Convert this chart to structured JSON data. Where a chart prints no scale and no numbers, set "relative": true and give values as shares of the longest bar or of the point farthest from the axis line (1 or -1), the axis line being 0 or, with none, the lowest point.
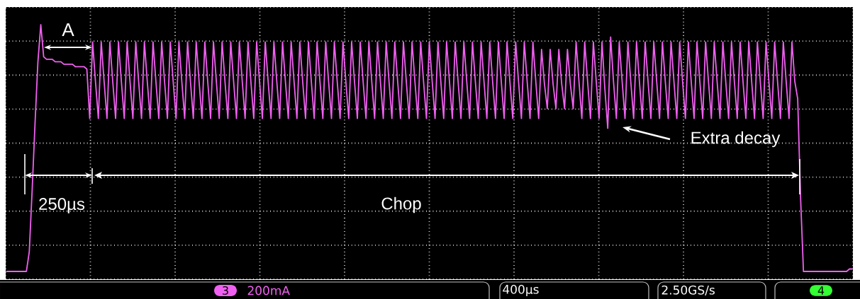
{
  "chart_data": {
    "type": "line",
    "relative": true,
    "grid": true,
    "color": "#f060f0",
    "annotations": [
      "A",
      "250µs",
      "Chop",
      "Extra decay",
      "3",
      "200mA",
      "400µs",
      "2.50GS/s",
      "4"
    ],
    "categories": [
      null,
      null,
      null,
      null,
      null,
      null,
      null,
      null,
      null,
      null,
      null,
      null,
      null,
      null,
      null,
      null,
      null,
      null,
      null,
      null,
      null,
      null,
      null,
      null,
      null,
      null,
      null,
      null,
      null,
      null,
      null,
      null,
      null,
      null,
      null,
      null,
      null,
      null,
      null,
      null,
      null,
      null,
      null,
      null,
      null,
      null,
      null,
      null,
      null,
      null,
      null,
      null,
      null,
      null,
      null,
      null,
      null,
      null,
      null,
      null,
      null,
      null,
      null,
      null,
      null,
      null,
      null,
      null,
      null,
      null,
      null,
      null,
      null,
      null,
      null,
      null,
      null,
      null,
      null,
      null,
      null,
      null,
      null,
      null,
      null,
      null,
      null,
      null,
      null,
      null,
      null,
      null,
      null,
      null,
      null,
      null,
      null,
      null,
      null,
      null,
      null,
      null,
      null,
      null,
      null,
      null,
      null,
      null,
      null,
      null,
      null,
      null,
      null,
      null,
      null,
      null,
      null,
      null,
      null,
      null,
      null,
      null,
      null,
      null,
      null,
      null,
      null,
      null,
      null,
      null,
      null,
      null,
      null,
      null,
      null,
      null,
      null,
      null,
      null,
      null,
      null,
      null,
      null,
      null,
      null,
      null,
      null,
      null,
      null,
      null,
      null,
      null,
      null,
      null,
      null,
      null,
      null,
      null,
      null,
      null,
      null,
      null,
      null,
      null,
      null,
      null,
      null,
      null,
      null,
      null,
      null,
      null,
      null,
      null,
      null,
      null,
      null,
      null,
      null,
      null,
      null,
      null,
      null,
      null,
      null,
      null,
      null,
      null,
      null,
      null,
      null,
      null,
      null,
      null,
      null,
      null,
      null,
      null,
      null,
      null,
      null,
      null,
      null,
      null,
      null,
      null,
      null,
      null,
      null,
      null,
      null,
      null,
      null,
      null,
      null,
      null,
      null,
      null,
      null,
      null,
      null,
      null,
      null,
      null,
      null,
      null,
      null,
      null,
      null,
      null,
      null,
      null,
      null,
      null,
      null,
      null,
      null,
      null,
      null,
      null,
      null,
      null,
      null,
      null,
      null,
      null,
      null,
      null,
      null,
      null,
      null,
      null,
      null,
      null,
      null,
      null,
      null,
      null,
      null,
      null,
      null,
      null,
      null,
      null,
      null,
      null,
      null,
      null,
      null,
      null,
      null,
      null,
      null,
      null,
      null,
      null,
      null,
      null,
      null,
      null,
      null,
      null,
      null,
      null,
      null,
      null,
      null,
      null,
      null,
      null,
      null,
      null,
      null,
      null,
      null
    ],
    "values": [
      0,
      0,
      0,
      0,
      0,
      0,
      0,
      0,
      0.08,
      0.33,
      0.6,
      0.85,
      1.0,
      0.87,
      0.86,
      0.86,
      0.86,
      0.85,
      0.85,
      0.85,
      0.84,
      0.84,
      0.84,
      0.84,
      0.83,
      0.83,
      0.83,
      0.83,
      0.82,
      0.62,
      0.93,
      0.77,
      0.62,
      0.93,
      0.77,
      0.62,
      0.93,
      0.77,
      0.62,
      0.93,
      0.77,
      0.62,
      0.93,
      0.77,
      0.62,
      0.93,
      0.77,
      0.62,
      0.93,
      0.77,
      0.62,
      0.93,
      0.77,
      0.62,
      0.93,
      0.77,
      0.62,
      0.93,
      0.77,
      0.62,
      0.93,
      0.77,
      0.62,
      0.93,
      0.77,
      0.62,
      0.93,
      0.77,
      0.62,
      0.93,
      0.77,
      0.62,
      0.93,
      0.77,
      0.62,
      0.93,
      0.77,
      0.62,
      0.93,
      0.77,
      0.62,
      0.93,
      0.77,
      0.62,
      0.93,
      0.77,
      0.62,
      0.93,
      0.77,
      0.62,
      0.93,
      0.77,
      0.62,
      0.93,
      0.77,
      0.62,
      0.93,
      0.77,
      0.62,
      0.93,
      0.77,
      0.62,
      0.93,
      0.77,
      0.62,
      0.93,
      0.77,
      0.62,
      0.93,
      0.77,
      0.62,
      0.93,
      0.77,
      0.62,
      0.93,
      0.77,
      0.62,
      0.93,
      0.77,
      0.62,
      0.93,
      0.77,
      0.62,
      0.93,
      0.77,
      0.62,
      0.93,
      0.77,
      0.62,
      0.93,
      0.77,
      0.62,
      0.93,
      0.77,
      0.62,
      0.93,
      0.77,
      0.62,
      0.93,
      0.77,
      0.62,
      0.93,
      0.77,
      0.62,
      0.93,
      0.77,
      0.62,
      0.93,
      0.77,
      0.62,
      0.93,
      0.77,
      0.62,
      0.93,
      0.77,
      0.62,
      0.93,
      0.77,
      0.62,
      0.93,
      0.77,
      0.62,
      0.93,
      0.77,
      0.62,
      0.93,
      0.77,
      0.62,
      0.93,
      0.77,
      0.62,
      0.93,
      0.77,
      0.62,
      0.93,
      0.77,
      0.62,
      0.93,
      0.77,
      0.62,
      0.93,
      0.77,
      0.62,
      0.93,
      0.77,
      0.62,
      0.9,
      0.76,
      0.66,
      0.9,
      0.76,
      0.66,
      0.9,
      0.76,
      0.66,
      0.9,
      0.76,
      0.66,
      0.93,
      0.77,
      0.62,
      0.93,
      0.77,
      0.62,
      0.93,
      0.77,
      0.62,
      0.93,
      0.74,
      0.58,
      0.95,
      0.77,
      0.62,
      0.93,
      0.77,
      0.62,
      0.93,
      0.77,
      0.62,
      0.93,
      0.77,
      0.62,
      0.93,
      0.77,
      0.62,
      0.93,
      0.77,
      0.62,
      0.93,
      0.77,
      0.62,
      0.93,
      0.77,
      0.62,
      0.93,
      0.77,
      0.62,
      0.93,
      0.77,
      0.62,
      0.93,
      0.77,
      0.62,
      0.93,
      0.77,
      0.62,
      0.93,
      0.77,
      0.62,
      0.93,
      0.77,
      0.62,
      0.93,
      0.77,
      0.62,
      0.93,
      0.77,
      0.62,
      0.93,
      0.77,
      0.62,
      0.93,
      0.77,
      0.62,
      0.93,
      0.77,
      0.62,
      0.93,
      0.77,
      0.62,
      0.93,
      0.77,
      0.62,
      0.93,
      0.77,
      0.7,
      0.3,
      0,
      0,
      0,
      0,
      0,
      0,
      0,
      0,
      0,
      0,
      0,
      0,
      0,
      0,
      0,
      0,
      0.01,
      0.01
    ]
  }
}
